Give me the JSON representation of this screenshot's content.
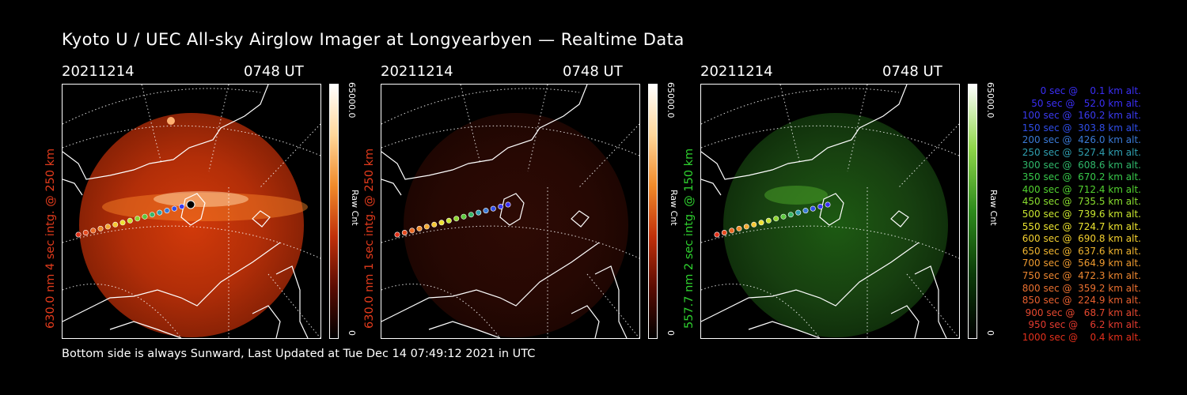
{
  "title": "Kyoto U / UEC All-sky Airglow Imager at Longyearbyen — Realtime Data",
  "footer": "Bottom side is always Sunward, Last Updated at Tue Dec 14 07:49:12 2021 in UTC",
  "panels": [
    {
      "date": "20211214",
      "time": "0748 UT",
      "ylabel": "630.0 nm 4 sec intg. @ 250 km",
      "label_color": "#e33b1c",
      "cbar_max": "65000.0",
      "cbar_unit": "Raw Cnt",
      "cbar_min": "0",
      "scheme": "red",
      "brightness": "bright"
    },
    {
      "date": "20211214",
      "time": "0748 UT",
      "ylabel": "630.0 nm 1 sec intg. @ 250 km",
      "label_color": "#e33b1c",
      "cbar_max": "65000.0",
      "cbar_unit": "Raw Cnt",
      "cbar_min": "0",
      "scheme": "red",
      "brightness": "dim"
    },
    {
      "date": "20211214",
      "time": "0748 UT",
      "ylabel": "557.7 nm 2 sec intg. @ 150 km",
      "label_color": "#2fd22f",
      "cbar_max": "65000.0",
      "cbar_unit": "Raw Cnt",
      "cbar_min": "0",
      "scheme": "green",
      "brightness": "dim"
    }
  ],
  "legend": [
    {
      "text": "   0 sec @    0.1 km alt.",
      "color": "#3a2ef5"
    },
    {
      "text": "  50 sec @   52.0 km alt.",
      "color": "#3a2ef5"
    },
    {
      "text": " 100 sec @  160.2 km alt.",
      "color": "#3a3af0"
    },
    {
      "text": " 150 sec @  303.8 km alt.",
      "color": "#2f4de8"
    },
    {
      "text": " 200 sec @  426.0 km alt.",
      "color": "#3a7ad6"
    },
    {
      "text": " 250 sec @  527.4 km alt.",
      "color": "#2f9fb0"
    },
    {
      "text": " 300 sec @  608.6 km alt.",
      "color": "#2fb86a"
    },
    {
      "text": " 350 sec @  670.2 km alt.",
      "color": "#37c84a"
    },
    {
      "text": " 400 sec @  712.4 km alt.",
      "color": "#52d22f"
    },
    {
      "text": " 450 sec @  735.5 km alt.",
      "color": "#8ade2f"
    },
    {
      "text": " 500 sec @  739.6 km alt.",
      "color": "#c8e52f"
    },
    {
      "text": " 550 sec @  724.7 km alt.",
      "color": "#ece42f"
    },
    {
      "text": " 600 sec @  690.8 km alt.",
      "color": "#f4d02f"
    },
    {
      "text": " 650 sec @  637.6 km alt.",
      "color": "#f0b42f"
    },
    {
      "text": " 700 sec @  564.9 km alt.",
      "color": "#ee9a2f"
    },
    {
      "text": " 750 sec @  472.3 km alt.",
      "color": "#ec862f"
    },
    {
      "text": " 800 sec @  359.2 km alt.",
      "color": "#ea702f"
    },
    {
      "text": " 850 sec @  224.9 km alt.",
      "color": "#e8602f"
    },
    {
      "text": " 900 sec @   68.7 km alt.",
      "color": "#e6482f"
    },
    {
      "text": " 950 sec @    6.2 km alt.",
      "color": "#e43a2f"
    },
    {
      "text": "1000 sec @    0.4 km alt.",
      "color": "#e3301c"
    }
  ],
  "trajectory_colors": [
    "#e03018",
    "#e44a20",
    "#ea6a25",
    "#ee8a2a",
    "#f2a82f",
    "#f4c630",
    "#eee232",
    "#c6e32f",
    "#8ed62f",
    "#5ac83a",
    "#37b86a",
    "#2f9fb0",
    "#3a7ad6",
    "#2f4de8",
    "#3a3af0",
    "#3a2ef5"
  ]
}
